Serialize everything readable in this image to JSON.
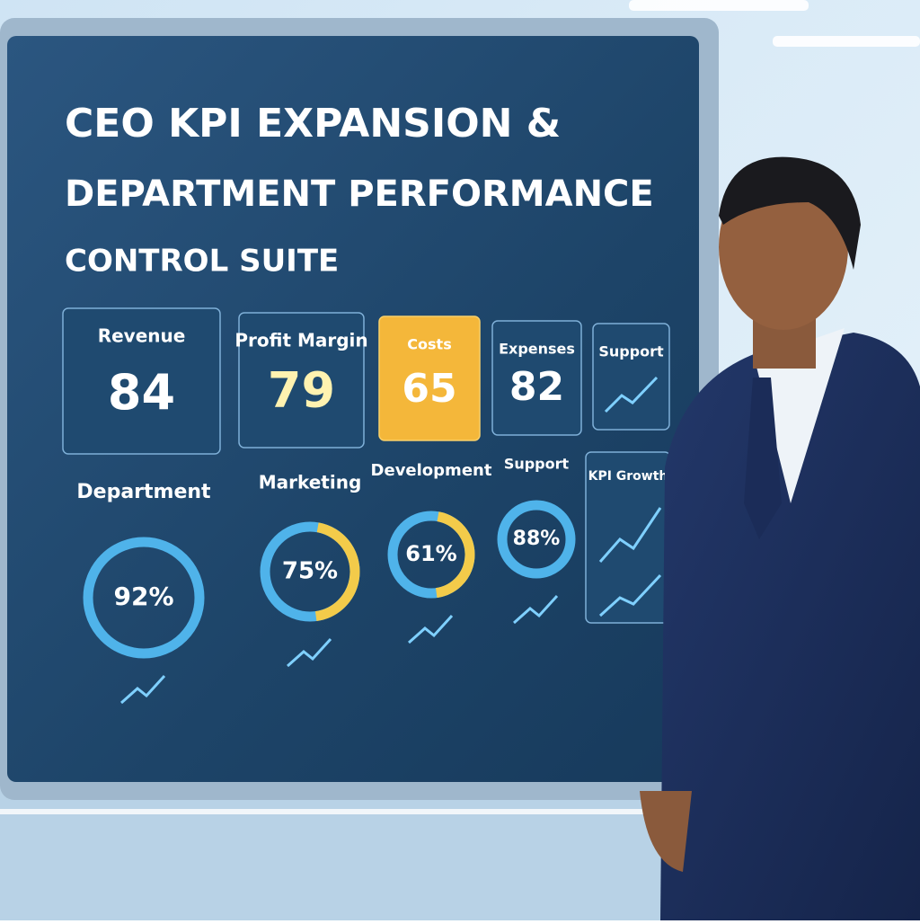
{
  "screen": {
    "title_lines": [
      "CEO KPI EXPANSION &",
      "DEPARTMENT PERFORMANCE",
      "CONTROL SUITE"
    ],
    "cards": [
      {
        "label": "Revenue",
        "value": 84
      },
      {
        "label": "Profit Margin",
        "value": 79
      },
      {
        "label": "Costs",
        "value": 65
      },
      {
        "label": "Expenses",
        "value": 82
      },
      {
        "label": "Support"
      }
    ],
    "donuts": [
      {
        "label": "Department",
        "value": "92%"
      },
      {
        "label": "Marketing",
        "value": "75%"
      },
      {
        "label": "Development",
        "value": "61%"
      },
      {
        "label": "Support",
        "value": "88%"
      }
    ],
    "panel": {
      "label": "KPI Growth"
    }
  }
}
